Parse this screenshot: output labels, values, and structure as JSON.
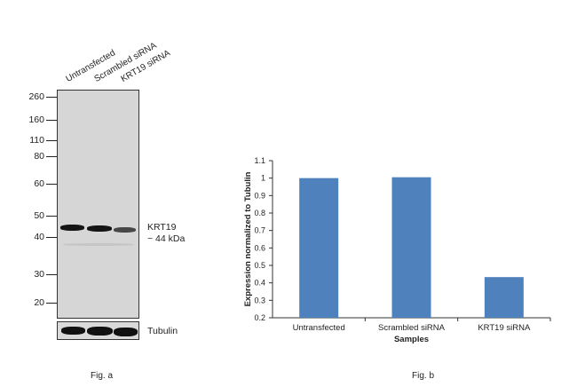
{
  "fig_a": {
    "lanes": [
      "Untransfected",
      "Scrambled siRNA",
      "KRT19 siRNA"
    ],
    "mw_markers": [
      {
        "label": "260",
        "kda": 260
      },
      {
        "label": "160",
        "kda": 160
      },
      {
        "label": "110",
        "kda": 110
      },
      {
        "label": "80",
        "kda": 80
      },
      {
        "label": "60",
        "kda": 60
      },
      {
        "label": "50",
        "kda": 50
      },
      {
        "label": "40",
        "kda": 40
      },
      {
        "label": "30",
        "kda": 30
      },
      {
        "label": "20",
        "kda": 20
      }
    ],
    "band_label_1": "KRT19",
    "band_label_2": "~ 44 kDa",
    "loading_control": "Tubulin",
    "band_intensity": [
      1.0,
      1.0,
      0.43
    ],
    "caption": "Fig. a"
  },
  "fig_b": {
    "caption": "Fig. b"
  },
  "chart_data": {
    "type": "bar",
    "categories": [
      "Untransfected",
      "Scrambled siRNA",
      "KRT19 siRNA"
    ],
    "values": [
      1.0,
      1.005,
      0.433
    ],
    "xlabel": "Samples",
    "ylabel": "Expression normalized to Tubulin",
    "ylim": [
      0.2,
      1.1
    ],
    "yticks": [
      "0.2",
      "0.3",
      "0.4",
      "0.5",
      "0.6",
      "0.7",
      "0.8",
      "0.9",
      "1",
      "1.1"
    ],
    "bar_color": "#4f81bd",
    "grid": false
  }
}
